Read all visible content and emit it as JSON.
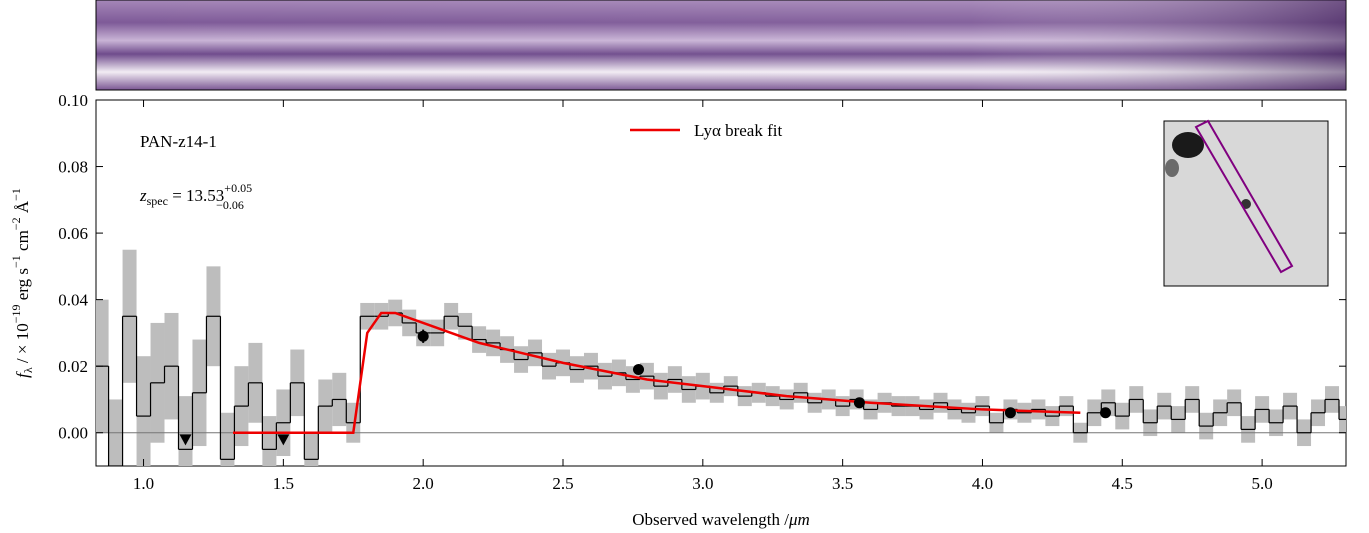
{
  "chart_data": {
    "type": "spectrum",
    "object_name": "PAN-z14-1",
    "redshift": {
      "symbol": "z",
      "sub": "spec",
      "text": " = 13.53",
      "plus": "+0.05",
      "minus": "−0.06"
    },
    "xlabel": {
      "text": "Observed wavelength /",
      "unit": "μm"
    },
    "ylabel": [
      "f",
      "λ",
      " / × 10",
      "−19",
      " erg s",
      "−1",
      " cm",
      "−2",
      " Å",
      "−1"
    ],
    "xlim": [
      0.83,
      5.3
    ],
    "ylim": [
      -0.01,
      0.1
    ],
    "xticks": [
      {
        "value": 1.0,
        "label": "1.0"
      },
      {
        "value": 1.5,
        "label": "1.5"
      },
      {
        "value": 2.0,
        "label": "2.0"
      },
      {
        "value": 2.5,
        "label": "2.5"
      },
      {
        "value": 3.0,
        "label": "3.0"
      },
      {
        "value": 3.5,
        "label": "3.5"
      },
      {
        "value": 4.0,
        "label": "4.0"
      },
      {
        "value": 4.5,
        "label": "4.5"
      },
      {
        "value": 5.0,
        "label": "5.0"
      }
    ],
    "yticks": [
      {
        "value": 0,
        "label": "0.00"
      },
      {
        "value": 0.02,
        "label": "0.02"
      },
      {
        "value": 0.04,
        "label": "0.04"
      },
      {
        "value": 0.06,
        "label": "0.06"
      },
      {
        "value": 0.08,
        "label": "0.08"
      },
      {
        "value": 0.1,
        "label": "0.10"
      }
    ],
    "spectrum": {
      "color": "#000000",
      "error_color": "#bdbdbd",
      "x": [
        0.85,
        0.9,
        0.95,
        1.0,
        1.05,
        1.1,
        1.15,
        1.2,
        1.25,
        1.3,
        1.35,
        1.4,
        1.45,
        1.5,
        1.55,
        1.6,
        1.65,
        1.7,
        1.75,
        1.8,
        1.85,
        1.9,
        1.95,
        2.0,
        2.05,
        2.1,
        2.15,
        2.2,
        2.25,
        2.3,
        2.35,
        2.4,
        2.45,
        2.5,
        2.55,
        2.6,
        2.65,
        2.7,
        2.75,
        2.8,
        2.85,
        2.9,
        2.95,
        3.0,
        3.05,
        3.1,
        3.15,
        3.2,
        3.25,
        3.3,
        3.35,
        3.4,
        3.45,
        3.5,
        3.55,
        3.6,
        3.65,
        3.7,
        3.75,
        3.8,
        3.85,
        3.9,
        3.95,
        4.0,
        4.05,
        4.1,
        4.15,
        4.2,
        4.25,
        4.3,
        4.35,
        4.4,
        4.45,
        4.5,
        4.55,
        4.6,
        4.65,
        4.7,
        4.75,
        4.8,
        4.85,
        4.9,
        4.95,
        5.0,
        5.05,
        5.1,
        5.15,
        5.2,
        5.25,
        5.3
      ],
      "values": [
        0.02,
        -0.01,
        0.035,
        0.005,
        0.015,
        0.02,
        -0.005,
        0.012,
        0.035,
        -0.008,
        0.008,
        0.015,
        -0.005,
        0.003,
        0.015,
        -0.008,
        0.008,
        0.01,
        0.003,
        0.035,
        0.035,
        0.036,
        0.033,
        0.03,
        0.03,
        0.035,
        0.032,
        0.028,
        0.027,
        0.025,
        0.022,
        0.024,
        0.02,
        0.021,
        0.019,
        0.02,
        0.017,
        0.018,
        0.016,
        0.017,
        0.014,
        0.016,
        0.013,
        0.014,
        0.012,
        0.014,
        0.011,
        0.012,
        0.011,
        0.01,
        0.012,
        0.009,
        0.01,
        0.008,
        0.01,
        0.007,
        0.009,
        0.008,
        0.008,
        0.007,
        0.009,
        0.007,
        0.006,
        0.008,
        0.003,
        0.007,
        0.006,
        0.007,
        0.005,
        0.008,
        0.0,
        0.006,
        0.009,
        0.005,
        0.01,
        0.003,
        0.008,
        0.004,
        0.01,
        0.002,
        0.006,
        0.009,
        0.001,
        0.007,
        0.003,
        0.008,
        0.0,
        0.006,
        0.01,
        0.004
      ],
      "errors": [
        0.02,
        0.02,
        0.02,
        0.018,
        0.018,
        0.016,
        0.016,
        0.016,
        0.015,
        0.014,
        0.012,
        0.012,
        0.01,
        0.01,
        0.01,
        0.008,
        0.008,
        0.008,
        0.006,
        0.004,
        0.004,
        0.004,
        0.004,
        0.004,
        0.004,
        0.004,
        0.004,
        0.004,
        0.004,
        0.004,
        0.004,
        0.004,
        0.004,
        0.004,
        0.004,
        0.004,
        0.004,
        0.004,
        0.004,
        0.004,
        0.004,
        0.004,
        0.004,
        0.004,
        0.003,
        0.003,
        0.003,
        0.003,
        0.003,
        0.003,
        0.003,
        0.003,
        0.003,
        0.003,
        0.003,
        0.003,
        0.003,
        0.003,
        0.003,
        0.003,
        0.003,
        0.003,
        0.003,
        0.003,
        0.003,
        0.003,
        0.003,
        0.003,
        0.003,
        0.003,
        0.003,
        0.004,
        0.004,
        0.004,
        0.004,
        0.004,
        0.004,
        0.004,
        0.004,
        0.004,
        0.004,
        0.004,
        0.004,
        0.004,
        0.004,
        0.004,
        0.004,
        0.004,
        0.004,
        0.004
      ]
    },
    "fit": {
      "name": "Lyα break fit",
      "color": "#ee0000",
      "x": [
        1.32,
        1.75,
        1.77,
        1.8,
        1.85,
        1.9,
        2.0,
        2.2,
        2.5,
        2.8,
        3.0,
        3.3,
        3.6,
        4.0,
        4.35
      ],
      "values": [
        0,
        0,
        0.012,
        0.03,
        0.036,
        0.036,
        0.033,
        0.027,
        0.021,
        0.016,
        0.014,
        0.011,
        0.009,
        0.007,
        0.006
      ]
    },
    "photometry": {
      "color": "#000000",
      "x": [
        2.0,
        2.77,
        3.56,
        4.1,
        4.44
      ],
      "values": [
        0.029,
        0.019,
        0.009,
        0.006,
        0.006
      ],
      "errors": [
        0.002,
        0.001,
        0.001,
        0.001,
        0.001
      ]
    },
    "upper_limits": {
      "color": "#000000",
      "x": [
        1.15,
        1.5
      ],
      "values": [
        -0.002,
        -0.002
      ]
    },
    "zero_line": 0
  }
}
